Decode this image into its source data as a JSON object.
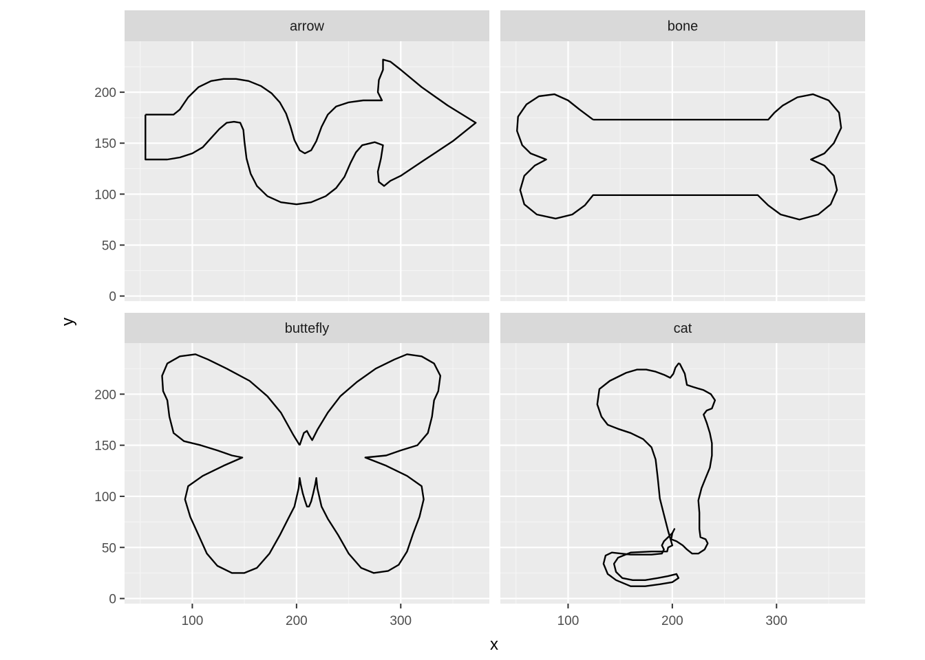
{
  "colors": {
    "panel_background": "#EBEBEB",
    "strip_background": "#D9D9D9",
    "grid_major": "#FFFFFF",
    "grid_minor": "#F5F5F5",
    "line": "#000000",
    "tick_text": "#4D4D4D"
  },
  "chart_data": {
    "type": "line",
    "facet_by": "shape",
    "xlabel": "x",
    "ylabel": "y",
    "xlim": [
      35,
      385
    ],
    "ylim": [
      -5,
      250
    ],
    "x_breaks": [
      100,
      200,
      300
    ],
    "y_breaks": [
      0,
      50,
      100,
      150,
      200
    ],
    "x_tick_labels": [
      "100",
      "200",
      "300"
    ],
    "y_tick_labels": [
      "0",
      "50",
      "100",
      "150",
      "200"
    ],
    "grid": true,
    "panels": [
      {
        "name": "arrow",
        "points": [
          [
            55,
            178
          ],
          [
            82,
            178
          ],
          [
            88,
            183
          ],
          [
            96,
            195
          ],
          [
            106,
            205
          ],
          [
            118,
            211
          ],
          [
            130,
            213
          ],
          [
            142,
            213
          ],
          [
            154,
            211
          ],
          [
            166,
            206
          ],
          [
            176,
            199
          ],
          [
            184,
            190
          ],
          [
            190,
            179
          ],
          [
            194,
            167
          ],
          [
            198,
            153
          ],
          [
            203,
            143
          ],
          [
            208,
            140
          ],
          [
            214,
            143
          ],
          [
            219,
            152
          ],
          [
            224,
            166
          ],
          [
            230,
            178
          ],
          [
            238,
            186
          ],
          [
            250,
            190
          ],
          [
            264,
            192
          ],
          [
            282,
            192
          ],
          [
            278,
            200
          ],
          [
            279,
            212
          ],
          [
            283,
            222
          ],
          [
            283,
            232
          ],
          [
            290,
            230
          ],
          [
            300,
            222
          ],
          [
            320,
            205
          ],
          [
            345,
            187
          ],
          [
            372,
            170
          ],
          [
            350,
            152
          ],
          [
            322,
            133
          ],
          [
            300,
            118
          ],
          [
            290,
            113
          ],
          [
            284,
            108
          ],
          [
            279,
            112
          ],
          [
            278,
            122
          ],
          [
            281,
            135
          ],
          [
            283,
            148
          ],
          [
            275,
            151
          ],
          [
            263,
            148
          ],
          [
            257,
            141
          ],
          [
            252,
            131
          ],
          [
            246,
            117
          ],
          [
            238,
            106
          ],
          [
            228,
            98
          ],
          [
            214,
            92
          ],
          [
            200,
            90
          ],
          [
            185,
            92
          ],
          [
            172,
            98
          ],
          [
            162,
            108
          ],
          [
            156,
            120
          ],
          [
            152,
            135
          ],
          [
            150,
            152
          ],
          [
            149,
            163
          ],
          [
            146,
            170
          ],
          [
            140,
            171
          ],
          [
            133,
            170
          ],
          [
            126,
            164
          ],
          [
            118,
            155
          ],
          [
            110,
            146
          ],
          [
            100,
            140
          ],
          [
            88,
            136
          ],
          [
            76,
            134
          ],
          [
            55,
            134
          ],
          [
            55,
            178
          ]
        ]
      },
      {
        "name": "bone",
        "points": [
          [
            124,
            173
          ],
          [
            111,
            183
          ],
          [
            100,
            192
          ],
          [
            87,
            198
          ],
          [
            72,
            196
          ],
          [
            60,
            188
          ],
          [
            52,
            176
          ],
          [
            51,
            162
          ],
          [
            56,
            148
          ],
          [
            64,
            140
          ],
          [
            79,
            134
          ],
          [
            68,
            128
          ],
          [
            58,
            118
          ],
          [
            54,
            104
          ],
          [
            58,
            90
          ],
          [
            70,
            80
          ],
          [
            88,
            76
          ],
          [
            104,
            80
          ],
          [
            116,
            89
          ],
          [
            124,
            99
          ],
          [
            200,
            99
          ],
          [
            282,
            99
          ],
          [
            292,
            89
          ],
          [
            304,
            80
          ],
          [
            322,
            75
          ],
          [
            340,
            80
          ],
          [
            352,
            90
          ],
          [
            358,
            104
          ],
          [
            355,
            118
          ],
          [
            346,
            128
          ],
          [
            333,
            134
          ],
          [
            346,
            140
          ],
          [
            355,
            150
          ],
          [
            362,
            165
          ],
          [
            360,
            180
          ],
          [
            350,
            192
          ],
          [
            335,
            198
          ],
          [
            320,
            195
          ],
          [
            306,
            187
          ],
          [
            298,
            180
          ],
          [
            292,
            173
          ],
          [
            200,
            173
          ],
          [
            124,
            173
          ]
        ]
      },
      {
        "name": "buttefly",
        "points": [
          [
            203,
            150
          ],
          [
            197,
            160
          ],
          [
            185,
            182
          ],
          [
            172,
            198
          ],
          [
            155,
            213
          ],
          [
            133,
            225
          ],
          [
            115,
            234
          ],
          [
            103,
            239
          ],
          [
            88,
            237
          ],
          [
            76,
            230
          ],
          [
            71,
            218
          ],
          [
            72,
            203
          ],
          [
            76,
            194
          ],
          [
            78,
            178
          ],
          [
            82,
            162
          ],
          [
            92,
            154
          ],
          [
            108,
            150
          ],
          [
            124,
            145
          ],
          [
            138,
            140
          ],
          [
            148,
            138
          ],
          [
            130,
            130
          ],
          [
            110,
            120
          ],
          [
            96,
            110
          ],
          [
            93,
            97
          ],
          [
            98,
            80
          ],
          [
            106,
            62
          ],
          [
            114,
            44
          ],
          [
            124,
            32
          ],
          [
            138,
            25
          ],
          [
            150,
            25
          ],
          [
            162,
            30
          ],
          [
            174,
            44
          ],
          [
            184,
            62
          ],
          [
            192,
            78
          ],
          [
            198,
            90
          ],
          [
            202,
            108
          ],
          [
            203,
            118
          ],
          [
            204,
            112
          ],
          [
            206,
            103
          ],
          [
            208,
            96
          ],
          [
            210,
            90
          ],
          [
            212,
            90
          ],
          [
            214,
            95
          ],
          [
            216,
            103
          ],
          [
            218,
            112
          ],
          [
            219,
            118
          ],
          [
            220,
            108
          ],
          [
            224,
            90
          ],
          [
            230,
            78
          ],
          [
            240,
            62
          ],
          [
            250,
            44
          ],
          [
            262,
            30
          ],
          [
            274,
            25
          ],
          [
            288,
            27
          ],
          [
            298,
            33
          ],
          [
            306,
            46
          ],
          [
            312,
            64
          ],
          [
            318,
            80
          ],
          [
            322,
            97
          ],
          [
            320,
            110
          ],
          [
            306,
            120
          ],
          [
            286,
            130
          ],
          [
            266,
            138
          ],
          [
            286,
            140
          ],
          [
            300,
            145
          ],
          [
            316,
            150
          ],
          [
            326,
            162
          ],
          [
            330,
            178
          ],
          [
            332,
            194
          ],
          [
            336,
            203
          ],
          [
            338,
            218
          ],
          [
            332,
            230
          ],
          [
            320,
            237
          ],
          [
            306,
            239
          ],
          [
            294,
            234
          ],
          [
            276,
            225
          ],
          [
            258,
            212
          ],
          [
            242,
            198
          ],
          [
            230,
            182
          ],
          [
            220,
            165
          ],
          [
            215,
            155
          ],
          [
            212,
            160
          ],
          [
            210,
            164
          ],
          [
            207,
            162
          ],
          [
            205,
            156
          ],
          [
            203,
            150
          ]
        ]
      },
      {
        "name": "cat",
        "points": [
          [
            207,
            230
          ],
          [
            212,
            220
          ],
          [
            214,
            209
          ],
          [
            220,
            207
          ],
          [
            230,
            204
          ],
          [
            237,
            200
          ],
          [
            241,
            194
          ],
          [
            238,
            186
          ],
          [
            233,
            184
          ],
          [
            230,
            180
          ],
          [
            233,
            172
          ],
          [
            236,
            162
          ],
          [
            238,
            152
          ],
          [
            238,
            140
          ],
          [
            236,
            128
          ],
          [
            232,
            118
          ],
          [
            228,
            108
          ],
          [
            225,
            96
          ],
          [
            226,
            84
          ],
          [
            226,
            68
          ],
          [
            227,
            60
          ],
          [
            232,
            58
          ],
          [
            234,
            54
          ],
          [
            231,
            48
          ],
          [
            225,
            44
          ],
          [
            219,
            44
          ],
          [
            214,
            48
          ],
          [
            210,
            52
          ],
          [
            204,
            56
          ],
          [
            199,
            58
          ],
          [
            200,
            64
          ],
          [
            202,
            68
          ],
          [
            200,
            64
          ],
          [
            196,
            60
          ],
          [
            192,
            56
          ],
          [
            190,
            52
          ],
          [
            192,
            48
          ],
          [
            190,
            44
          ],
          [
            180,
            43
          ],
          [
            160,
            43
          ],
          [
            142,
            45
          ],
          [
            136,
            42
          ],
          [
            134,
            34
          ],
          [
            138,
            24
          ],
          [
            146,
            18
          ],
          [
            160,
            12
          ],
          [
            174,
            12
          ],
          [
            188,
            14
          ],
          [
            200,
            16
          ],
          [
            206,
            20
          ],
          [
            204,
            24
          ],
          [
            196,
            22
          ],
          [
            186,
            20
          ],
          [
            174,
            18
          ],
          [
            162,
            18
          ],
          [
            152,
            20
          ],
          [
            146,
            26
          ],
          [
            144,
            34
          ],
          [
            148,
            40
          ],
          [
            160,
            45
          ],
          [
            180,
            46
          ],
          [
            195,
            46
          ],
          [
            196,
            50
          ],
          [
            200,
            52
          ],
          [
            196,
            66
          ],
          [
            192,
            82
          ],
          [
            188,
            98
          ],
          [
            186,
            118
          ],
          [
            184,
            136
          ],
          [
            180,
            148
          ],
          [
            172,
            156
          ],
          [
            160,
            162
          ],
          [
            148,
            166
          ],
          [
            138,
            170
          ],
          [
            132,
            178
          ],
          [
            128,
            190
          ],
          [
            130,
            205
          ],
          [
            140,
            213
          ],
          [
            148,
            217
          ],
          [
            156,
            221
          ],
          [
            166,
            224
          ],
          [
            175,
            224
          ],
          [
            184,
            222
          ],
          [
            192,
            219
          ],
          [
            198,
            216
          ],
          [
            201,
            220
          ],
          [
            203,
            226
          ],
          [
            206,
            230
          ],
          [
            207,
            230
          ]
        ]
      }
    ]
  }
}
